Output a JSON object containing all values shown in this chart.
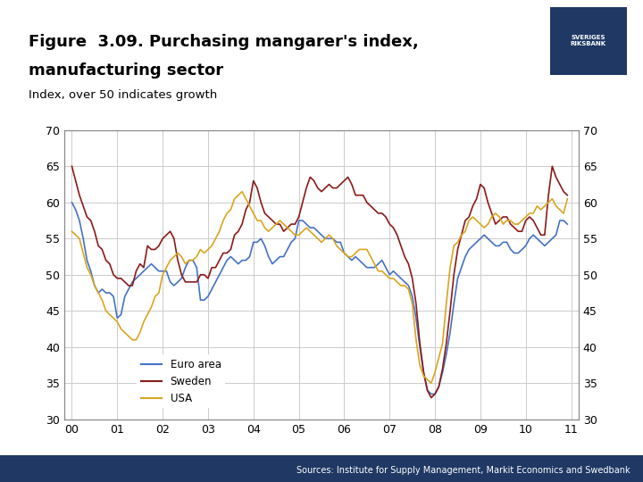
{
  "title_line1": "Figure  3.09. Purchasing mangarer's index,",
  "title_line2": "manufacturing sector",
  "subtitle": "Index, over 50 indicates growth",
  "source": "Sources: Institute for Supply Management, Markit Economics and Swedbank",
  "colors": {
    "euro_area": "#4472C4",
    "sweden": "#8B1A1A",
    "usa": "#DAA520",
    "background": "#FFFFFF",
    "bar_bottom": "#1F3864",
    "grid": "#CCCCCC"
  },
  "legend": [
    "Euro area",
    "Sweden",
    "USA"
  ],
  "xlim": [
    0,
    132
  ],
  "ylim": [
    30,
    70
  ],
  "yticks": [
    30,
    35,
    40,
    45,
    50,
    55,
    60,
    65,
    70
  ],
  "xtick_labels": [
    "00",
    "01",
    "02",
    "03",
    "04",
    "05",
    "06",
    "07",
    "08",
    "09",
    "10",
    "11"
  ],
  "xtick_positions": [
    0,
    12,
    24,
    36,
    48,
    60,
    72,
    84,
    96,
    108,
    120,
    132
  ],
  "euro_area": [
    60.0,
    59.0,
    57.5,
    55.0,
    52.0,
    50.5,
    48.5,
    47.5,
    48.0,
    47.5,
    47.5,
    47.0,
    44.0,
    44.5,
    47.0,
    48.0,
    49.0,
    49.5,
    50.0,
    50.5,
    51.0,
    51.5,
    51.0,
    50.5,
    50.5,
    50.5,
    49.0,
    48.5,
    49.0,
    49.5,
    51.0,
    52.0,
    52.0,
    51.0,
    46.5,
    46.5,
    47.0,
    48.0,
    49.0,
    50.0,
    51.0,
    52.0,
    52.5,
    52.0,
    51.5,
    52.0,
    52.0,
    52.5,
    54.5,
    54.5,
    55.0,
    54.0,
    52.5,
    51.5,
    52.0,
    52.5,
    52.5,
    53.5,
    54.5,
    55.0,
    57.5,
    57.5,
    57.0,
    56.5,
    56.5,
    56.0,
    55.5,
    55.0,
    55.0,
    55.0,
    54.5,
    54.5,
    53.0,
    52.5,
    52.0,
    52.5,
    52.0,
    51.5,
    51.0,
    51.0,
    51.0,
    51.5,
    52.0,
    51.0,
    50.0,
    50.5,
    50.0,
    49.5,
    49.0,
    48.5,
    47.0,
    44.0,
    40.0,
    36.5,
    34.0,
    33.5,
    33.5,
    34.5,
    36.5,
    39.0,
    42.0,
    46.0,
    49.5,
    51.0,
    52.5,
    53.5,
    54.0,
    54.5,
    55.0,
    55.5,
    55.0,
    54.5,
    54.0,
    54.0,
    54.5,
    54.5,
    53.5,
    53.0,
    53.0,
    53.5,
    54.0,
    55.0,
    55.5,
    55.0,
    54.5,
    54.0,
    54.5,
    55.0,
    55.5,
    57.5,
    57.5,
    57.0
  ],
  "sweden": [
    65.0,
    63.0,
    61.0,
    59.5,
    58.0,
    57.5,
    56.0,
    54.0,
    53.5,
    52.0,
    51.5,
    50.0,
    49.5,
    49.5,
    49.0,
    48.5,
    48.5,
    50.5,
    51.5,
    51.0,
    54.0,
    53.5,
    53.5,
    54.0,
    55.0,
    55.5,
    56.0,
    55.0,
    52.0,
    50.0,
    49.0,
    49.0,
    49.0,
    49.0,
    50.0,
    50.0,
    49.5,
    51.0,
    51.0,
    52.0,
    53.0,
    53.0,
    53.5,
    55.5,
    56.0,
    57.0,
    59.0,
    60.0,
    63.0,
    62.0,
    60.0,
    58.5,
    58.0,
    57.5,
    57.0,
    57.0,
    56.0,
    56.5,
    57.0,
    57.0,
    58.0,
    60.0,
    62.0,
    63.5,
    63.0,
    62.0,
    61.5,
    62.0,
    62.5,
    62.0,
    62.0,
    62.5,
    63.0,
    63.5,
    62.5,
    61.0,
    61.0,
    61.0,
    60.0,
    59.5,
    59.0,
    58.5,
    58.5,
    58.0,
    57.0,
    56.5,
    55.5,
    54.0,
    52.5,
    51.5,
    49.5,
    46.0,
    40.5,
    36.5,
    34.0,
    33.0,
    33.5,
    34.5,
    37.0,
    40.5,
    45.0,
    50.0,
    53.5,
    55.5,
    57.5,
    58.0,
    59.5,
    60.5,
    62.5,
    62.0,
    60.0,
    58.5,
    57.0,
    57.5,
    58.0,
    58.0,
    57.0,
    56.5,
    56.0,
    56.0,
    57.5,
    58.0,
    57.5,
    56.5,
    55.5,
    55.5,
    61.0,
    65.0,
    63.5,
    62.5,
    61.5,
    61.0
  ],
  "usa": [
    56.0,
    55.5,
    55.0,
    53.0,
    51.0,
    50.0,
    48.5,
    47.5,
    46.5,
    45.0,
    44.5,
    44.0,
    43.5,
    42.5,
    42.0,
    41.5,
    41.0,
    41.0,
    42.0,
    43.5,
    44.5,
    45.5,
    47.0,
    47.5,
    50.0,
    51.0,
    52.0,
    52.5,
    53.0,
    52.5,
    51.5,
    52.0,
    52.0,
    52.5,
    53.5,
    53.0,
    53.5,
    54.0,
    55.0,
    56.0,
    57.5,
    58.5,
    59.0,
    60.5,
    61.0,
    61.5,
    60.5,
    59.5,
    58.5,
    57.5,
    57.5,
    56.5,
    56.0,
    56.5,
    57.0,
    57.5,
    57.0,
    56.5,
    56.0,
    55.5,
    55.5,
    56.0,
    56.5,
    56.0,
    55.5,
    55.0,
    54.5,
    55.0,
    55.5,
    55.0,
    54.0,
    53.5,
    53.0,
    52.5,
    52.5,
    53.0,
    53.5,
    53.5,
    53.5,
    52.5,
    51.5,
    50.5,
    50.5,
    50.0,
    49.5,
    49.5,
    49.0,
    48.5,
    48.5,
    48.0,
    46.0,
    41.0,
    37.5,
    36.0,
    35.5,
    35.0,
    36.5,
    38.5,
    40.5,
    46.0,
    51.0,
    54.0,
    54.5,
    55.5,
    56.0,
    57.5,
    58.0,
    57.5,
    57.0,
    56.5,
    57.0,
    58.0,
    58.5,
    58.0,
    57.0,
    57.5,
    57.5,
    57.0,
    57.0,
    57.5,
    58.0,
    58.5,
    58.5,
    59.5,
    59.0,
    59.5,
    60.0,
    60.5,
    59.5,
    59.0,
    58.5,
    60.5
  ]
}
